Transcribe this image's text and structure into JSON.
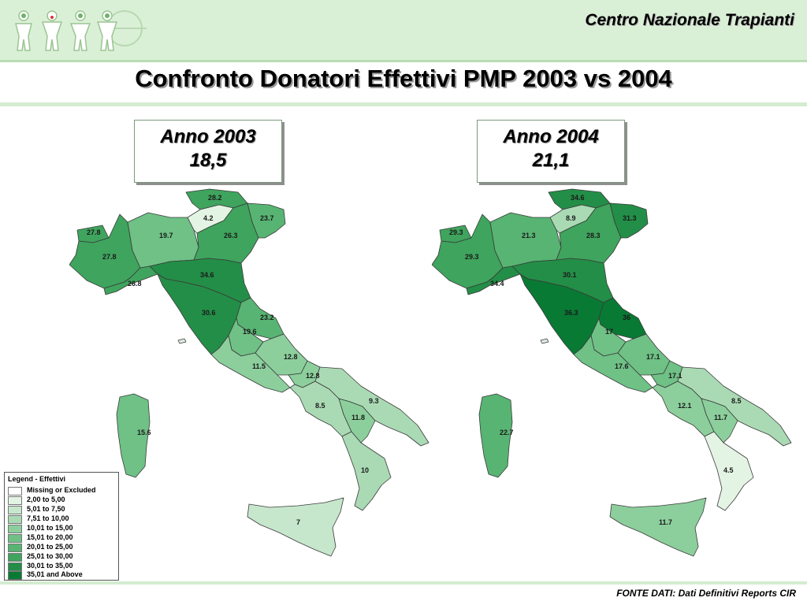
{
  "header": {
    "organization": "Centro Nazionale Trapianti",
    "logo": "people-figures-logo"
  },
  "title": "Confronto Donatori Effettivi PMP 2003 vs 2004",
  "maps": [
    {
      "year_label": "Anno 2003",
      "national_value": "18,5",
      "regions": {
        "aosta": "27.8",
        "piemonte": "27.8",
        "liguria": "26.8",
        "lombardia": "19.7",
        "alto_adige": "28.2",
        "trentino": "4.2",
        "veneto": "26.3",
        "friuli": "23.7",
        "emilia": "34.6",
        "toscana": "30.6",
        "marche": "23.2",
        "umbria": "19.6",
        "lazio": "11.5",
        "abruzzo": "12.8",
        "molise": "12.8",
        "campania": "8.5",
        "puglia": "9.3",
        "basilicata": "11.8",
        "calabria": "10",
        "sicilia": "7",
        "sardegna": "15.6"
      }
    },
    {
      "year_label": "Anno 2004",
      "national_value": "21,1",
      "regions": {
        "aosta": "29.3",
        "piemonte": "29.3",
        "liguria": "34.4",
        "lombardia": "21.3",
        "alto_adige": "34.6",
        "trentino": "8.9",
        "veneto": "28.3",
        "friuli": "31.3",
        "emilia": "30.1",
        "toscana": "36.3",
        "marche": "36",
        "umbria": "17",
        "lazio": "17.6",
        "abruzzo": "17.1",
        "molise": "17.1",
        "campania": "12.1",
        "puglia": "8.5",
        "basilicata": "11.7",
        "calabria": "4.5",
        "sicilia": "11.7",
        "sardegna": "22.7"
      }
    }
  ],
  "legend": {
    "title": "Legend - Effettivi",
    "items": [
      {
        "label": "Missing or Excluded",
        "color": "#ffffff"
      },
      {
        "label": "2,00 to 5,00",
        "color": "#e4f4e4"
      },
      {
        "label": "5,01 to 7,50",
        "color": "#c6e7cc"
      },
      {
        "label": "7,51 to 10,00",
        "color": "#aadab4"
      },
      {
        "label": "10,01 to 15,00",
        "color": "#8ccf9c"
      },
      {
        "label": "15,01 to 20,00",
        "color": "#6fc186"
      },
      {
        "label": "20,01 to 25,00",
        "color": "#58b472"
      },
      {
        "label": "25,01 to 30,00",
        "color": "#3fa45d"
      },
      {
        "label": "30,01 to 35,00",
        "color": "#238e47"
      },
      {
        "label": "35,01 and Above",
        "color": "#087a34"
      }
    ]
  },
  "source": "FONTE DATI: Dati Definitivi Reports CIR"
}
